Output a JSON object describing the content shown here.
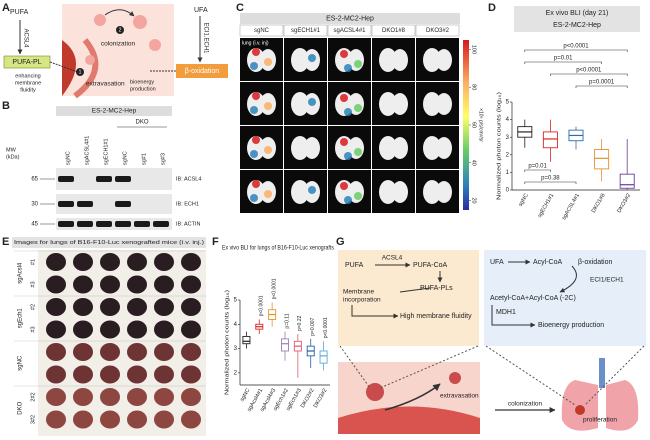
{
  "panel_labels": [
    "A",
    "B",
    "C",
    "D",
    "E",
    "F",
    "G"
  ],
  "a": {
    "pufa": "PUFA",
    "acsl4": "ACSL4",
    "pufa_pl": "PUFA-PL",
    "fluidity": [
      "enhancing",
      "membrane",
      "fluidity"
    ],
    "colonization": "colonization",
    "extravasation": "extravasation",
    "step1": "1",
    "step2": "2",
    "ufa": "UFA",
    "enzymes": "ECI1.ECH1",
    "beta_oxidation": "β-oxidation",
    "bioenergy": [
      "bioenergy",
      "production"
    ]
  },
  "b": {
    "title": "ES-2-MC2-Hep",
    "lanes": [
      "sgNC",
      "sgACSL4#1",
      "sgECH1#1",
      "sgNC",
      "sg#1",
      "sg#3"
    ],
    "dko": "DKO",
    "mw": [
      "MW",
      "(kDa)"
    ],
    "markers": [
      65,
      30,
      45
    ],
    "blots": [
      "IB: ACSL4",
      "IB: ECH1",
      "IB: ACTIN"
    ]
  },
  "c": {
    "title": "ES-2-MC2-Hep",
    "columns": [
      "sgNC",
      "sgECH1#1",
      "sgACSL4#1",
      "DKO1#8",
      "DKO3#2"
    ],
    "row_label": "lung (i.v. inj)",
    "colorbar_label": "×10⁶ p/s/cm²/sr",
    "colorbar_ticks": [
      100,
      80,
      60,
      40,
      20
    ],
    "colorbar_lim": [
      15,
      105
    ]
  },
  "chart_data": [
    {
      "type": "box",
      "title": "Ex vivo BLI (day 21)",
      "subtitle": "ES-2-MC2-Hep",
      "ylabel": "Normalized photon counts (log₁₀)",
      "categories": [
        "sgNC",
        "sgECH1#1",
        "sgACSL4#1",
        "DKO1#8",
        "DKO3#2"
      ],
      "colors": [
        "#222222",
        "#d62728",
        "#2b6cb0",
        "#e8912d",
        "#6a3d9a"
      ],
      "boxes": [
        {
          "min": 2.4,
          "q1": 3.0,
          "median": 3.3,
          "q3": 3.6,
          "max": 4.0
        },
        {
          "min": 1.6,
          "q1": 2.4,
          "median": 2.9,
          "q3": 3.3,
          "max": 4.0
        },
        {
          "min": 2.3,
          "q1": 2.8,
          "median": 3.1,
          "q3": 3.4,
          "max": 3.6
        },
        {
          "min": 0.5,
          "q1": 1.2,
          "median": 1.8,
          "q3": 2.3,
          "max": 2.9
        },
        {
          "min": 0,
          "q1": 0.1,
          "median": 0.3,
          "q3": 0.9,
          "max": 2.9
        }
      ],
      "ylim": [
        0,
        5
      ],
      "yticks": [
        0,
        1,
        2,
        3,
        4,
        5
      ],
      "pvalues": [
        "p<0.0001",
        "p=0.01",
        "p<0.0001",
        "p=0.0001",
        "p=0.01",
        "p=0.38"
      ]
    },
    {
      "type": "box",
      "title": "Ex vivo BLI for lungs of B16-F10-Luc xenografts",
      "ylabel": "Normalized photon counts (log₁₀)",
      "categories": [
        "sgNC",
        "sgAcsl4#1",
        "sgAcsl4#3",
        "sgEch1#2",
        "sgEch1#3",
        "DKO2#2",
        "DKO3#2"
      ],
      "colors": [
        "#222222",
        "#d62728",
        "#e8912d",
        "#9e7bb5",
        "#e05a6a",
        "#2a5caa",
        "#5aa9d6"
      ],
      "boxes": [
        {
          "min": 3.0,
          "q1": 3.2,
          "median": 3.3,
          "q3": 3.5,
          "max": 3.7
        },
        {
          "min": 3.6,
          "q1": 3.8,
          "median": 3.9,
          "q3": 4.0,
          "max": 4.2
        },
        {
          "min": 3.9,
          "q1": 4.2,
          "median": 4.4,
          "q3": 4.6,
          "max": 4.9
        },
        {
          "min": 2.5,
          "q1": 2.9,
          "median": 3.2,
          "q3": 3.4,
          "max": 3.7
        },
        {
          "min": 1.8,
          "q1": 2.9,
          "median": 3.1,
          "q3": 3.3,
          "max": 3.6
        },
        {
          "min": 2.2,
          "q1": 2.7,
          "median": 2.9,
          "q3": 3.1,
          "max": 3.4
        },
        {
          "min": 2.1,
          "q1": 2.4,
          "median": 2.7,
          "q3": 2.9,
          "max": 3.3
        }
      ],
      "ylim": [
        1.5,
        5
      ],
      "yticks": [
        2,
        3,
        4,
        5
      ],
      "pvalues": [
        "p<0.0001",
        "p<0.0001",
        "p=0.11",
        "p=0.22",
        "p=0.007",
        "p<0.0001"
      ]
    }
  ],
  "e": {
    "title": "Images for lungs of B16-F10-Luc xenografted mice (i.v. inj.)",
    "groups": [
      "sgAcsl4",
      "sgEch1",
      "sgNC",
      "DKO"
    ],
    "rows": [
      "#1",
      "#3",
      "#2",
      "#3",
      null,
      null,
      "2#2",
      "3#2"
    ]
  },
  "g": {
    "pufa": "PUFA",
    "acsl4": "ACSL4",
    "pufa_coa": "PUFA-CoA",
    "pufa_pls": "PUFA-PLs",
    "membrane": [
      "Membrane",
      "incorporation"
    ],
    "fluidity": "High membrane fluidity",
    "ufa": "UFA",
    "acyl_coa": "Acyl-CoA",
    "beta_oxidation": "β-oxidation",
    "enzymes": "ECI1/ECH1",
    "acetyl": "Acetyl-CoA+Acyl-CoA (-2C)",
    "mdh1": "MDH1",
    "bioenergy": "Bioenergy production",
    "extravasation": "extravasation",
    "colonization": "colonization",
    "proliferation": "proliferation"
  }
}
